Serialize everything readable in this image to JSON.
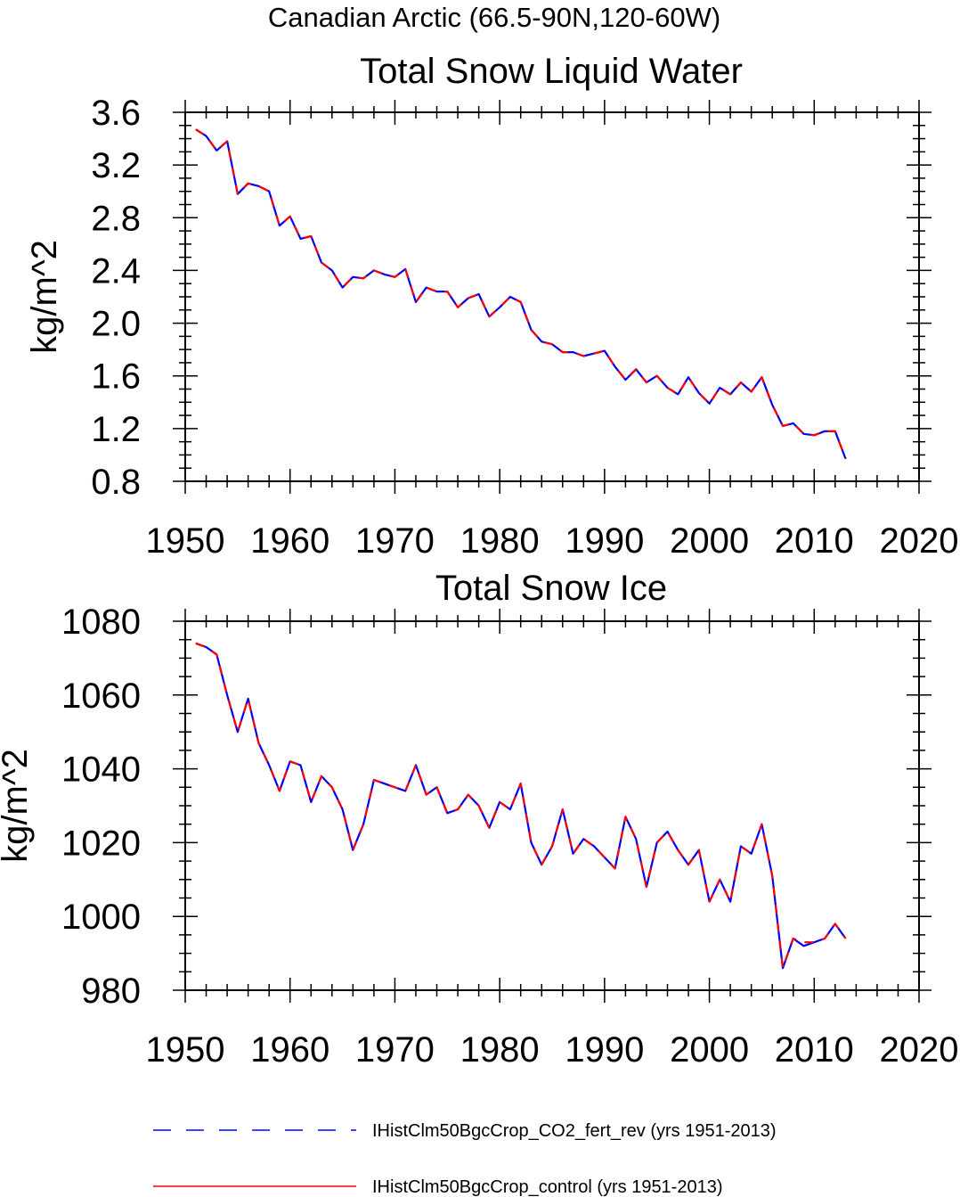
{
  "figure": {
    "title": "Canadian Arctic (66.5-90N,120-60W)"
  },
  "legend": {
    "placement": "bottom",
    "items": [
      {
        "label": "IHistClm50BgcCrop_CO2_fert_rev (yrs 1951-2013)",
        "color": "#0000ff",
        "dash": "dashed"
      },
      {
        "label": "IHistClm50BgcCrop_control (yrs 1951-2013)",
        "color": "#ff0000",
        "dash": "solid"
      }
    ]
  },
  "chart_data": [
    {
      "type": "line",
      "title": "Total Snow Liquid Water",
      "xlabel": "",
      "ylabel": "kg/m^2",
      "xlim": [
        1950,
        2020
      ],
      "ylim": [
        0.8,
        3.6
      ],
      "xticks": [
        1950,
        1960,
        1970,
        1980,
        1990,
        2000,
        2010,
        2020
      ],
      "yticks": [
        "0.8",
        "1.2",
        "1.6",
        "2.0",
        "2.4",
        "2.8",
        "3.2",
        "3.6"
      ],
      "grid": false,
      "x": [
        1951,
        1952,
        1953,
        1954,
        1955,
        1956,
        1957,
        1958,
        1959,
        1960,
        1961,
        1962,
        1963,
        1964,
        1965,
        1966,
        1967,
        1968,
        1969,
        1970,
        1971,
        1972,
        1973,
        1974,
        1975,
        1976,
        1977,
        1978,
        1979,
        1980,
        1981,
        1982,
        1983,
        1984,
        1985,
        1986,
        1987,
        1988,
        1989,
        1990,
        1991,
        1992,
        1993,
        1994,
        1995,
        1996,
        1997,
        1998,
        1999,
        2000,
        2001,
        2002,
        2003,
        2004,
        2005,
        2006,
        2007,
        2008,
        2009,
        2010,
        2011,
        2012,
        2013
      ],
      "series": [
        {
          "name": "IHistClm50BgcCrop_CO2_fert_rev (yrs 1951-2013)",
          "color": "#0000ff",
          "dash": "dashed",
          "values": [
            3.47,
            3.42,
            3.31,
            3.38,
            2.98,
            3.06,
            3.04,
            3.0,
            2.74,
            2.81,
            2.64,
            2.66,
            2.46,
            2.4,
            2.27,
            2.35,
            2.34,
            2.4,
            2.37,
            2.35,
            2.41,
            2.16,
            2.27,
            2.24,
            2.24,
            2.12,
            2.19,
            2.22,
            2.05,
            2.12,
            2.2,
            2.16,
            1.95,
            1.86,
            1.84,
            1.78,
            1.78,
            1.75,
            1.77,
            1.79,
            1.67,
            1.57,
            1.65,
            1.55,
            1.6,
            1.51,
            1.46,
            1.59,
            1.47,
            1.39,
            1.51,
            1.46,
            1.55,
            1.48,
            1.59,
            1.38,
            1.22,
            1.24,
            1.16,
            1.15,
            1.18,
            1.18,
            0.97
          ]
        },
        {
          "name": "IHistClm50BgcCrop_control (yrs 1951-2013)",
          "color": "#ff0000",
          "dash": "solid",
          "values": [
            3.47,
            3.42,
            3.31,
            3.38,
            2.98,
            3.06,
            3.04,
            3.0,
            2.74,
            2.81,
            2.64,
            2.66,
            2.46,
            2.4,
            2.27,
            2.35,
            2.34,
            2.4,
            2.37,
            2.35,
            2.41,
            2.16,
            2.27,
            2.24,
            2.24,
            2.12,
            2.19,
            2.22,
            2.05,
            2.12,
            2.2,
            2.16,
            1.95,
            1.86,
            1.84,
            1.78,
            1.78,
            1.75,
            1.77,
            1.79,
            1.67,
            1.57,
            1.65,
            1.55,
            1.6,
            1.51,
            1.46,
            1.59,
            1.47,
            1.39,
            1.51,
            1.46,
            1.55,
            1.48,
            1.59,
            1.38,
            1.22,
            1.24,
            1.16,
            1.15,
            1.18,
            1.18,
            0.97
          ]
        }
      ]
    },
    {
      "type": "line",
      "title": "Total Snow Ice",
      "xlabel": "",
      "ylabel": "kg/m^2",
      "xlim": [
        1950,
        2020
      ],
      "ylim": [
        980,
        1080
      ],
      "xticks": [
        1950,
        1960,
        1970,
        1980,
        1990,
        2000,
        2010,
        2020
      ],
      "yticks": [
        "980",
        "1000",
        "1020",
        "1040",
        "1060",
        "1080"
      ],
      "grid": false,
      "x": [
        1951,
        1952,
        1953,
        1954,
        1955,
        1956,
        1957,
        1958,
        1959,
        1960,
        1961,
        1962,
        1963,
        1964,
        1965,
        1966,
        1967,
        1968,
        1969,
        1970,
        1971,
        1972,
        1973,
        1974,
        1975,
        1976,
        1977,
        1978,
        1979,
        1980,
        1981,
        1982,
        1983,
        1984,
        1985,
        1986,
        1987,
        1988,
        1989,
        1990,
        1991,
        1992,
        1993,
        1994,
        1995,
        1996,
        1997,
        1998,
        1999,
        2000,
        2001,
        2002,
        2003,
        2004,
        2005,
        2006,
        2007,
        2008,
        2009,
        2010,
        2011,
        2012,
        2013
      ],
      "series": [
        {
          "name": "IHistClm50BgcCrop_CO2_fert_rev (yrs 1951-2013)",
          "color": "#0000ff",
          "dash": "dashed",
          "values": [
            1074,
            1073,
            1071,
            1060,
            1050,
            1059,
            1047,
            1041,
            1034,
            1042,
            1041,
            1031,
            1038,
            1035,
            1029,
            1018,
            1025,
            1037,
            1036,
            1035,
            1034,
            1041,
            1033,
            1035,
            1028,
            1029,
            1033,
            1030,
            1024,
            1031,
            1029,
            1036,
            1020,
            1014,
            1019,
            1029,
            1017,
            1021,
            1019,
            1016,
            1013,
            1027,
            1021,
            1008,
            1020,
            1023,
            1018,
            1014,
            1018,
            1004,
            1010,
            1004,
            1019,
            1017,
            1025,
            1011,
            986,
            994,
            992,
            993,
            994,
            998,
            994
          ]
        },
        {
          "name": "IHistClm50BgcCrop_control (yrs 1951-2013)",
          "color": "#ff0000",
          "dash": "solid",
          "values": [
            1074,
            1073,
            1071,
            1060,
            1050,
            1059,
            1047,
            1041,
            1034,
            1042,
            1041,
            1031,
            1038,
            1035,
            1029,
            1018,
            1025,
            1037,
            1036,
            1035,
            1034,
            1041,
            1033,
            1035,
            1028,
            1029,
            1033,
            1030,
            1024,
            1031,
            1029,
            1036,
            1020,
            1014,
            1019,
            1029,
            1017,
            1021,
            1019,
            1016,
            1013,
            1027,
            1021,
            1008,
            1020,
            1023,
            1018,
            1014,
            1018,
            1004,
            1010,
            1004,
            1019,
            1017,
            1025,
            1011,
            986,
            994,
            993,
            993,
            994,
            998,
            994
          ]
        }
      ]
    }
  ]
}
